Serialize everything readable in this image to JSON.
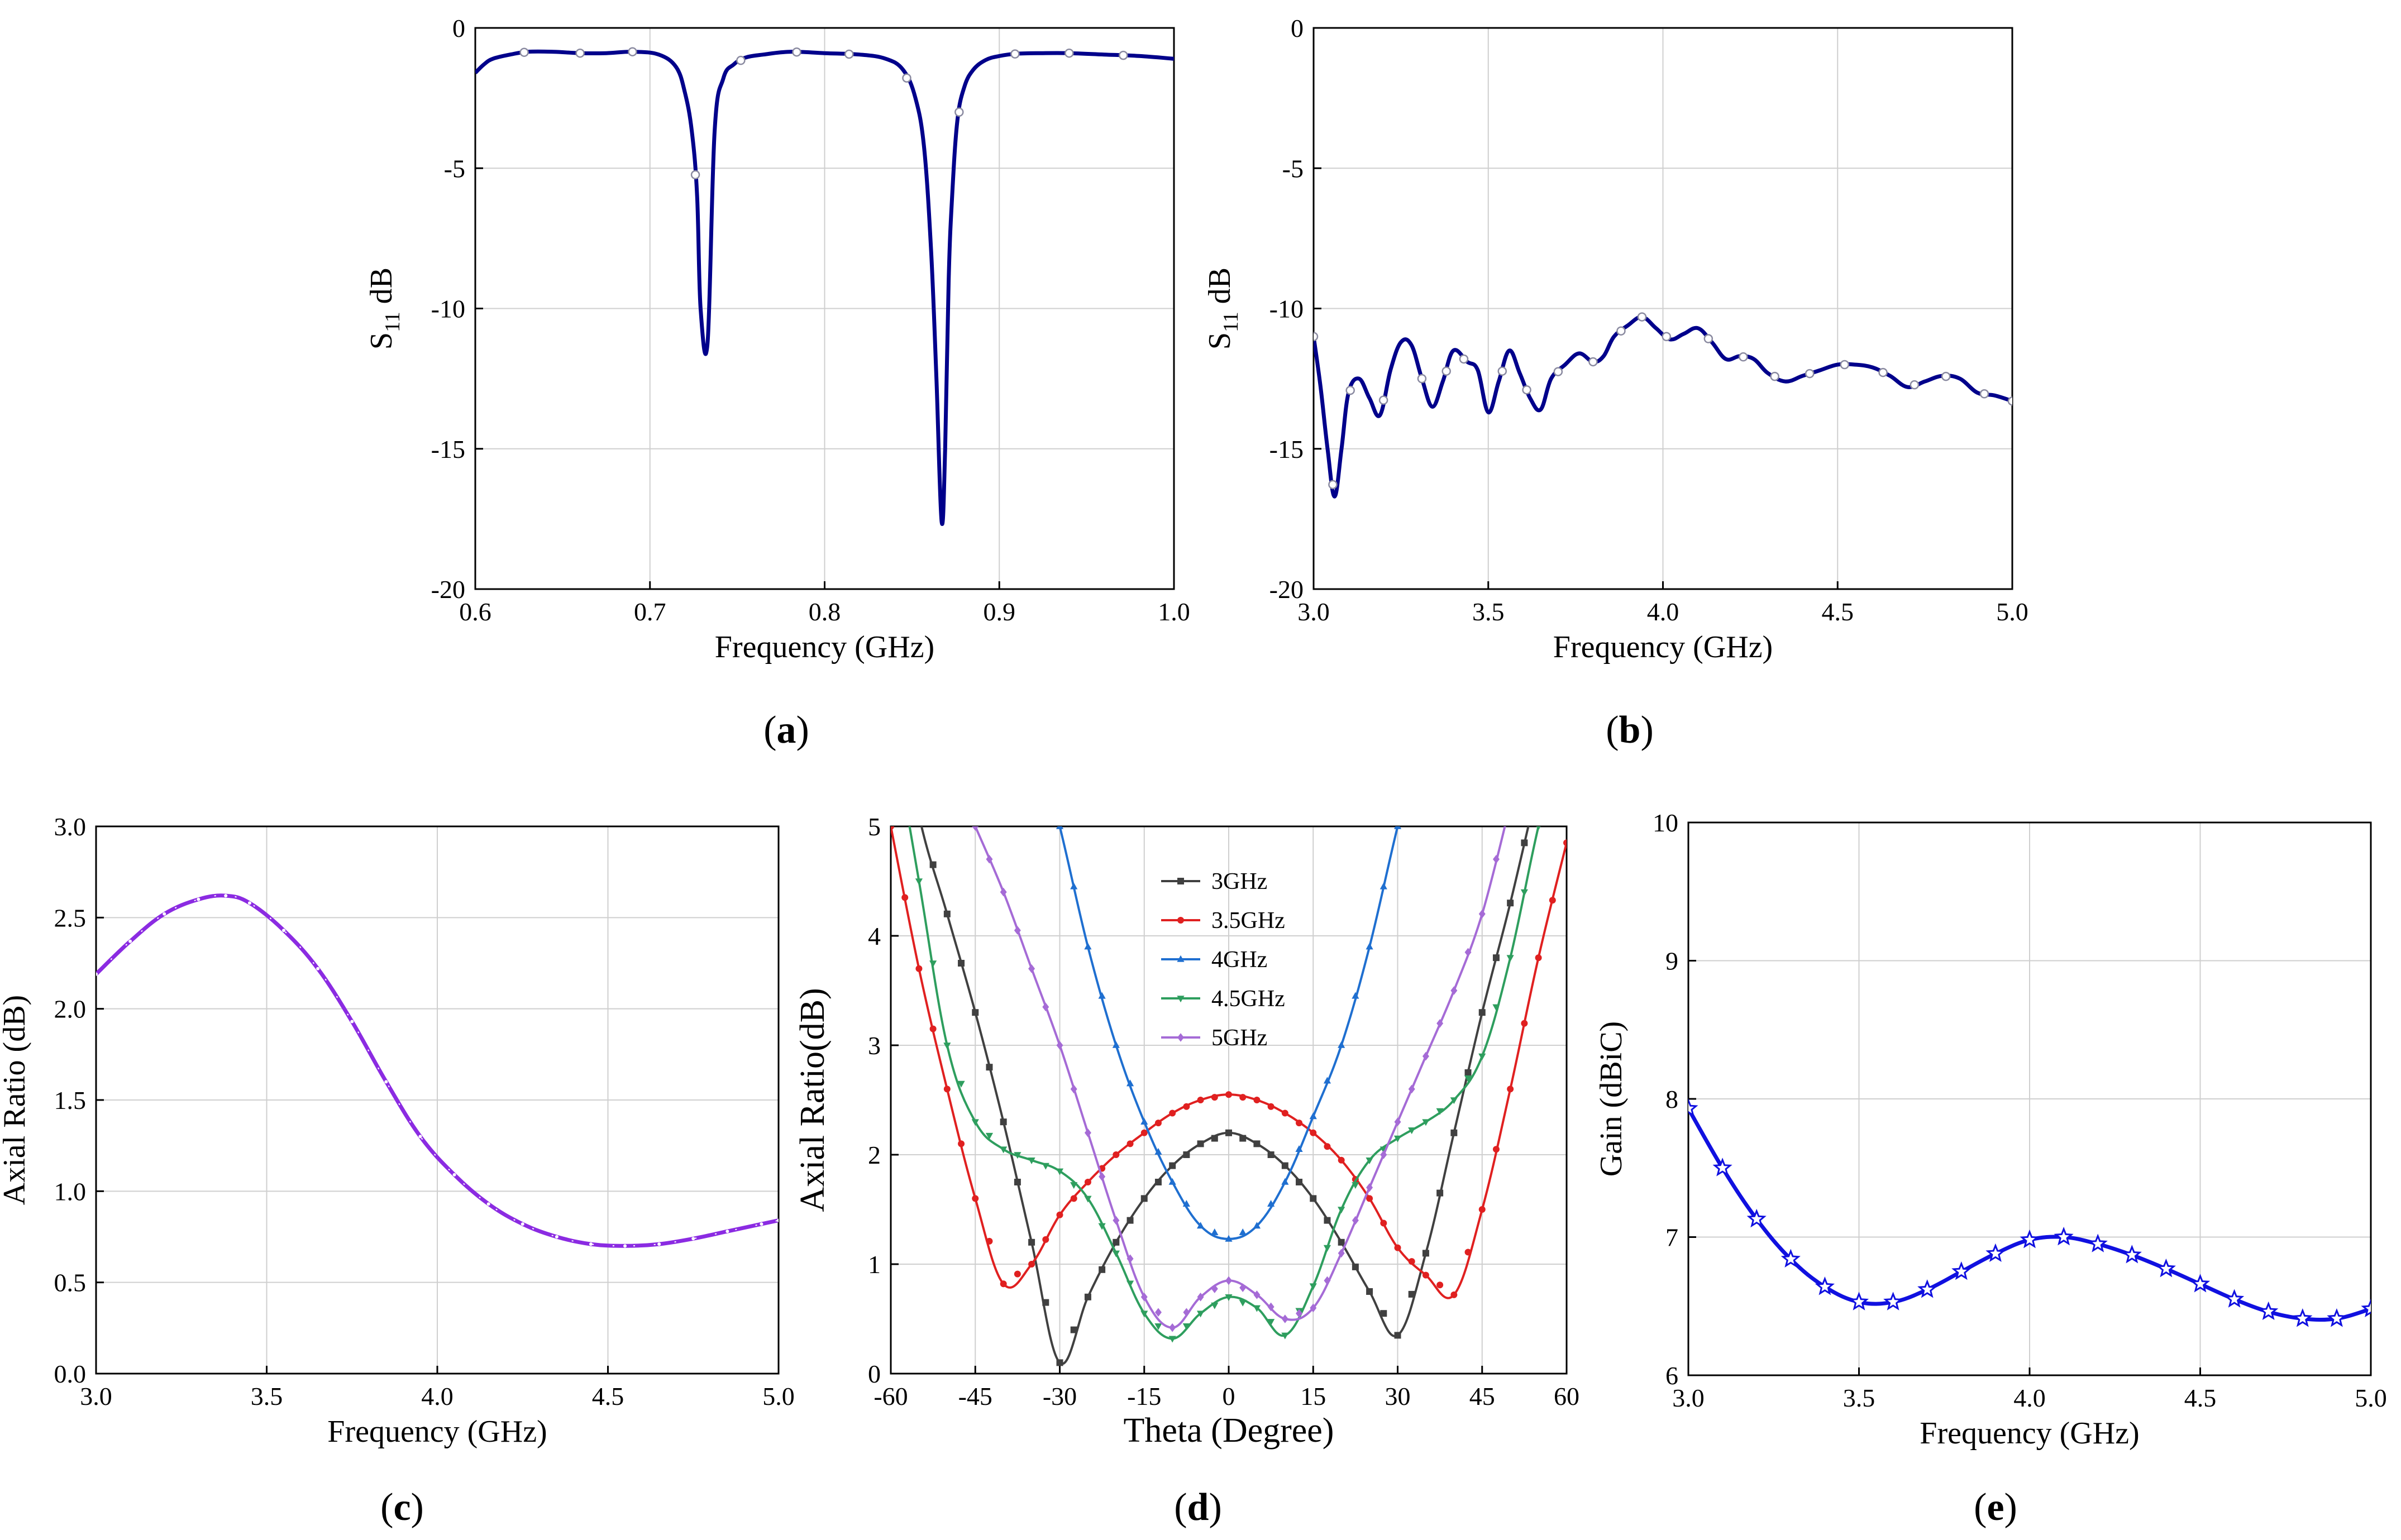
{
  "chart_data": [
    {
      "id": "a",
      "panel_label": "a",
      "type": "line",
      "xlabel": "Frequency (GHz)",
      "ylabel_main": "S",
      "ylabel_sub": "11",
      "ylabel_tail": " dB",
      "xlim": [
        0.6,
        1.0
      ],
      "ylim": [
        -20,
        0
      ],
      "xticks": [
        0.6,
        0.7,
        0.8,
        0.9,
        1.0
      ],
      "xtick_labels": [
        "0.6",
        "0.7",
        "0.8",
        "0.9",
        "1.0"
      ],
      "yticks": [
        0,
        -5,
        -10,
        -15,
        -20
      ],
      "ytick_labels": [
        "0",
        "-5",
        "-10",
        "-15",
        "-20"
      ],
      "grid": true,
      "series": [
        {
          "color": "#00008B",
          "marker": "circle",
          "x": [
            0.6,
            0.605,
            0.61,
            0.62,
            0.63,
            0.645,
            0.66,
            0.675,
            0.69,
            0.705,
            0.715,
            0.72,
            0.724,
            0.727,
            0.729,
            0.733,
            0.737,
            0.742,
            0.748,
            0.755,
            0.765,
            0.78,
            0.8,
            0.82,
            0.835,
            0.845,
            0.852,
            0.857,
            0.861,
            0.864,
            0.867,
            0.869,
            0.871,
            0.873,
            0.876,
            0.88,
            0.885,
            0.892,
            0.9,
            0.91,
            0.925,
            0.94,
            0.96,
            0.98,
            1.0
          ],
          "y": [
            -1.6,
            -1.3,
            -1.1,
            -0.95,
            -0.85,
            -0.85,
            -0.9,
            -0.9,
            -0.85,
            -0.95,
            -1.4,
            -2.3,
            -3.7,
            -6.0,
            -10.0,
            -11.2,
            -3.7,
            -1.8,
            -1.3,
            -1.05,
            -0.95,
            -0.85,
            -0.9,
            -0.95,
            -1.1,
            -1.5,
            -2.5,
            -4.3,
            -8.0,
            -12.5,
            -17.6,
            -15.0,
            -9.0,
            -6.0,
            -3.3,
            -2.1,
            -1.5,
            -1.15,
            -1.0,
            -0.92,
            -0.9,
            -0.9,
            -0.95,
            -1.0,
            -1.1
          ]
        }
      ],
      "marker_x": [
        0.628,
        0.66,
        0.69,
        0.726,
        0.752,
        0.784,
        0.814,
        0.847,
        0.877,
        0.909,
        0.94,
        0.971
      ]
    },
    {
      "id": "b",
      "panel_label": "b",
      "type": "line",
      "xlabel": "Frequency (GHz)",
      "ylabel_main": "S",
      "ylabel_sub": "11",
      "ylabel_tail": " dB",
      "xlim": [
        3.0,
        5.0
      ],
      "ylim": [
        -20,
        0
      ],
      "xticks": [
        3.0,
        3.5,
        4.0,
        4.5,
        5.0
      ],
      "xtick_labels": [
        "3.0",
        "3.5",
        "4.0",
        "4.5",
        "5.0"
      ],
      "yticks": [
        0,
        -5,
        -10,
        -15,
        -20
      ],
      "ytick_labels": [
        "0",
        "-5",
        "-10",
        "-15",
        "-20"
      ],
      "grid": true,
      "series": [
        {
          "color": "#00008B",
          "marker": "circle",
          "x": [
            3.0,
            3.02,
            3.04,
            3.06,
            3.08,
            3.1,
            3.13,
            3.16,
            3.19,
            3.22,
            3.25,
            3.28,
            3.31,
            3.34,
            3.37,
            3.4,
            3.44,
            3.47,
            3.5,
            3.53,
            3.56,
            3.59,
            3.62,
            3.65,
            3.68,
            3.72,
            3.76,
            3.8,
            3.83,
            3.86,
            3.9,
            3.94,
            3.98,
            4.02,
            4.06,
            4.1,
            4.14,
            4.18,
            4.22,
            4.26,
            4.3,
            4.35,
            4.4,
            4.45,
            4.5,
            4.55,
            4.6,
            4.65,
            4.7,
            4.75,
            4.8,
            4.85,
            4.9,
            4.95,
            5.0
          ],
          "y": [
            -11.0,
            -12.8,
            -15.0,
            -16.7,
            -15.0,
            -13.0,
            -12.5,
            -13.2,
            -13.8,
            -12.2,
            -11.2,
            -11.3,
            -12.5,
            -13.5,
            -12.6,
            -11.5,
            -11.9,
            -12.2,
            -13.7,
            -12.6,
            -11.5,
            -12.3,
            -13.2,
            -13.6,
            -12.5,
            -12.0,
            -11.6,
            -11.9,
            -11.7,
            -11.0,
            -10.6,
            -10.3,
            -10.7,
            -11.1,
            -10.9,
            -10.7,
            -11.2,
            -11.8,
            -11.7,
            -11.8,
            -12.3,
            -12.6,
            -12.4,
            -12.2,
            -12.0,
            -12.0,
            -12.1,
            -12.4,
            -12.8,
            -12.6,
            -12.4,
            -12.5,
            -13.0,
            -13.1,
            -13.3
          ]
        }
      ],
      "marker_x": [
        3.0,
        3.055,
        3.105,
        3.2,
        3.31,
        3.38,
        3.43,
        3.54,
        3.61,
        3.7,
        3.8,
        3.88,
        3.94,
        4.01,
        4.13,
        4.23,
        4.32,
        4.42,
        4.52,
        4.63,
        4.72,
        4.81,
        4.92,
        5.0
      ]
    },
    {
      "id": "c",
      "panel_label": "c",
      "type": "line",
      "xlabel": "Frequency (GHz)",
      "ylabel": "Axial Ratio (dB)",
      "xlim": [
        3.0,
        5.0
      ],
      "ylim": [
        0.0,
        3.0
      ],
      "xticks": [
        3.0,
        3.5,
        4.0,
        4.5,
        5.0
      ],
      "xtick_labels": [
        "3.0",
        "3.5",
        "4.0",
        "4.5",
        "5.0"
      ],
      "yticks": [
        0.0,
        0.5,
        1.0,
        1.5,
        2.0,
        2.5,
        3.0
      ],
      "ytick_labels": [
        "0.0",
        "0.5",
        "1.0",
        "1.5",
        "2.0",
        "2.5",
        "3.0"
      ],
      "grid": true,
      "series": [
        {
          "color": "#8B2BE2",
          "marker": "circle",
          "x": [
            3.0,
            3.1,
            3.2,
            3.3,
            3.38,
            3.45,
            3.55,
            3.65,
            3.75,
            3.85,
            3.95,
            4.05,
            4.15,
            4.25,
            4.35,
            4.45,
            4.55,
            4.65,
            4.75,
            4.85,
            4.95,
            5.0
          ],
          "y": [
            2.19,
            2.37,
            2.52,
            2.6,
            2.62,
            2.58,
            2.43,
            2.22,
            1.93,
            1.6,
            1.3,
            1.09,
            0.93,
            0.82,
            0.75,
            0.71,
            0.7,
            0.71,
            0.74,
            0.78,
            0.82,
            0.84
          ]
        }
      ]
    },
    {
      "id": "d",
      "panel_label": "d",
      "type": "line",
      "xlabel": "Theta (Degree)",
      "ylabel": "Axial Ratio(dB)",
      "xlim": [
        -60,
        60
      ],
      "ylim": [
        0,
        5
      ],
      "xticks": [
        -60,
        -45,
        -30,
        -15,
        0,
        15,
        30,
        45,
        60
      ],
      "xtick_labels": [
        "-60",
        "-45",
        "-30",
        "-15",
        "0",
        "15",
        "30",
        "45",
        "60"
      ],
      "yticks": [
        0,
        1,
        2,
        3,
        4,
        5
      ],
      "ytick_labels": [
        "0",
        "1",
        "2",
        "3",
        "4",
        "5"
      ],
      "grid": true,
      "legend": "top-center",
      "series": [
        {
          "name": "3GHz",
          "color": "#404040",
          "marker": "square",
          "x": [
            -60,
            -55,
            -50,
            -45,
            -40,
            -35,
            -30,
            -25,
            -20,
            -15,
            -10,
            -5,
            0,
            5,
            10,
            15,
            20,
            25,
            30,
            35,
            40,
            45,
            50,
            55,
            60
          ],
          "y": [
            6.5,
            5.1,
            4.2,
            3.3,
            2.3,
            1.2,
            0.1,
            0.7,
            1.2,
            1.6,
            1.9,
            2.1,
            2.2,
            2.1,
            1.9,
            1.6,
            1.2,
            0.75,
            0.35,
            1.1,
            2.2,
            3.3,
            4.3,
            5.4,
            6.5
          ]
        },
        {
          "name": "3.5GHz",
          "color": "#E02020",
          "marker": "circle",
          "x": [
            -60,
            -55,
            -50,
            -45,
            -40,
            -35,
            -30,
            -25,
            -20,
            -15,
            -10,
            -5,
            0,
            5,
            10,
            15,
            20,
            25,
            30,
            35,
            40,
            45,
            50,
            55,
            60
          ],
          "y": [
            5.0,
            3.7,
            2.6,
            1.6,
            0.82,
            1.0,
            1.45,
            1.75,
            2.0,
            2.2,
            2.38,
            2.5,
            2.55,
            2.5,
            2.38,
            2.2,
            1.95,
            1.6,
            1.15,
            0.9,
            0.72,
            1.5,
            2.6,
            3.8,
            4.85
          ]
        },
        {
          "name": "4GHz",
          "color": "#1F6FD0",
          "marker": "triangle",
          "x": [
            -35,
            -30,
            -25,
            -20,
            -15,
            -10,
            -5,
            0,
            5,
            10,
            15,
            20,
            25,
            30,
            35
          ],
          "y": [
            6.0,
            5.0,
            3.9,
            3.0,
            2.3,
            1.75,
            1.35,
            1.23,
            1.35,
            1.75,
            2.35,
            3.0,
            3.9,
            5.0,
            6.0
          ]
        },
        {
          "name": "4.5GHz",
          "color": "#2E9E5E",
          "marker": "triangle-down",
          "x": [
            -60,
            -55,
            -50,
            -45,
            -40,
            -35,
            -30,
            -25,
            -20,
            -15,
            -10,
            -5,
            0,
            5,
            10,
            15,
            20,
            25,
            30,
            35,
            40,
            45,
            50,
            55,
            60
          ],
          "y": [
            6.0,
            4.5,
            3.0,
            2.3,
            2.05,
            1.95,
            1.85,
            1.6,
            1.1,
            0.55,
            0.32,
            0.55,
            0.7,
            0.6,
            0.35,
            0.8,
            1.5,
            1.95,
            2.15,
            2.3,
            2.5,
            2.9,
            3.8,
            5.0,
            6.0
          ]
        },
        {
          "name": "5GHz",
          "color": "#A56BD6",
          "marker": "diamond",
          "x": [
            -45,
            -40,
            -35,
            -30,
            -25,
            -20,
            -15,
            -10,
            -5,
            0,
            5,
            10,
            15,
            20,
            25,
            30,
            35,
            40,
            45,
            50
          ],
          "y": [
            5.0,
            4.4,
            3.7,
            3.0,
            2.2,
            1.4,
            0.7,
            0.42,
            0.7,
            0.85,
            0.72,
            0.5,
            0.6,
            1.1,
            1.7,
            2.3,
            2.9,
            3.5,
            4.2,
            5.2
          ]
        }
      ]
    },
    {
      "id": "e",
      "panel_label": "e",
      "type": "line",
      "xlabel": "Frequency (GHz)",
      "ylabel": "Gain (dBiC)",
      "xlim": [
        3.0,
        5.0
      ],
      "ylim": [
        6,
        10
      ],
      "xticks": [
        3.0,
        3.5,
        4.0,
        4.5,
        5.0
      ],
      "xtick_labels": [
        "3.0",
        "3.5",
        "4.0",
        "4.5",
        "5.0"
      ],
      "yticks": [
        6,
        7,
        8,
        9,
        10
      ],
      "ytick_labels": [
        "6",
        "7",
        "8",
        "9",
        "10"
      ],
      "grid": true,
      "series": [
        {
          "color": "#1010E0",
          "marker": "star",
          "x": [
            3.0,
            3.1,
            3.2,
            3.3,
            3.4,
            3.5,
            3.6,
            3.7,
            3.8,
            3.9,
            4.0,
            4.1,
            4.2,
            4.3,
            4.4,
            4.5,
            4.6,
            4.7,
            4.8,
            4.9,
            5.0
          ],
          "y": [
            7.93,
            7.5,
            7.13,
            6.84,
            6.64,
            6.53,
            6.53,
            6.62,
            6.75,
            6.88,
            6.98,
            7.0,
            6.95,
            6.87,
            6.77,
            6.66,
            6.55,
            6.46,
            6.41,
            6.41,
            6.48
          ]
        }
      ]
    }
  ]
}
